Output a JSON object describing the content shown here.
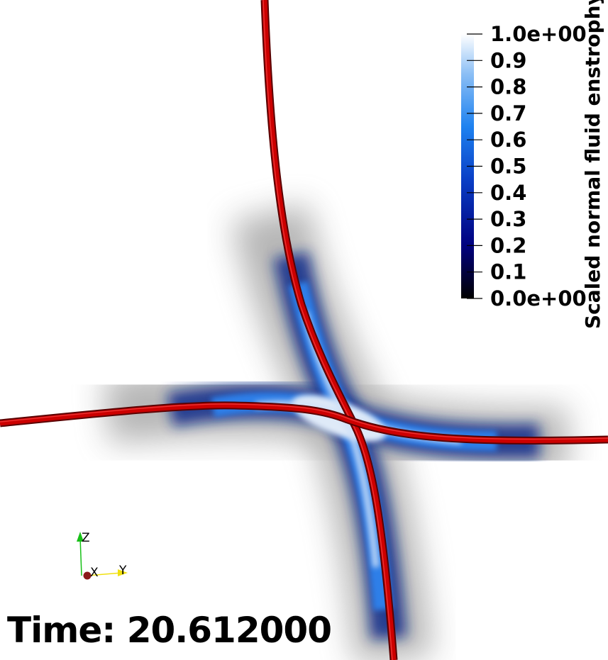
{
  "time": {
    "label": "Time:",
    "value": "20.612000"
  },
  "colorbar": {
    "title": "Scaled normal fluid enstrophy",
    "ticks": [
      "1.0e+00",
      "0.9",
      "0.8",
      "0.7",
      "0.6",
      "0.5",
      "0.4",
      "0.3",
      "0.2",
      "0.1",
      "0.0e+00"
    ],
    "colormap": [
      "#000000",
      "#00007f",
      "#0a3fc6",
      "#1e82f0",
      "#8cbff5",
      "#ffffff"
    ]
  },
  "orientation_axes": {
    "x": "X",
    "y": "Y",
    "z": "Z",
    "colors": {
      "x": "#8b1a1a",
      "y": "#f0e010",
      "z": "#17c017"
    }
  },
  "field": {
    "vortex_color": "#cc0000",
    "background": "#ffffff"
  }
}
